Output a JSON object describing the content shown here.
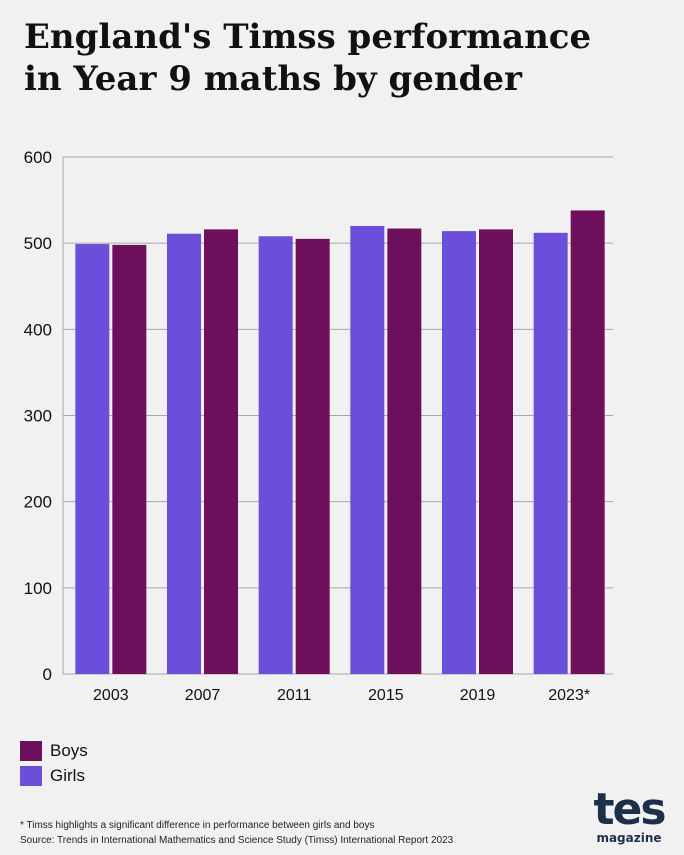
{
  "title": {
    "line1": "England's Timss performance",
    "line2": "in Year 9 maths by gender"
  },
  "chart_data": {
    "type": "bar",
    "categories": [
      "2003",
      "2007",
      "2011",
      "2015",
      "2019",
      "2023*"
    ],
    "series": [
      {
        "name": "Girls",
        "color": "#6b4fdb",
        "values": [
          499,
          511,
          508,
          520,
          514,
          512
        ]
      },
      {
        "name": "Boys",
        "color": "#6e0f5c",
        "values": [
          498,
          516,
          505,
          517,
          516,
          538
        ]
      }
    ],
    "ylim": [
      0,
      600
    ],
    "yticks": [
      0,
      100,
      200,
      300,
      400,
      500,
      600
    ],
    "grid": true,
    "legend_position": "bottom-left",
    "title": "England's Timss performance in Year 9 maths by gender",
    "xlabel": "",
    "ylabel": ""
  },
  "legend": [
    {
      "label": "Boys",
      "color": "#6e0f5c"
    },
    {
      "label": "Girls",
      "color": "#6b4fdb"
    }
  ],
  "footnote": {
    "note": "* Timss highlights a significant difference in performance between girls and boys",
    "source": "Source: Trends in International Mathematics and Science Study (Timss) International Report 2023"
  },
  "logo": {
    "main": "tes",
    "sub": "magazine"
  }
}
